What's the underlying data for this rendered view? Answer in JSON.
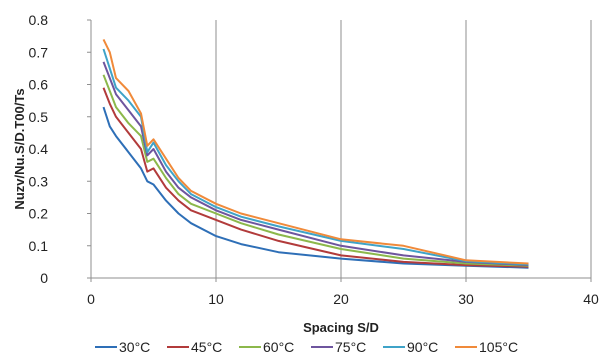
{
  "chart_data": {
    "type": "line",
    "title": "",
    "xlabel": "Spacing S/D",
    "ylabel": "Nuzv/Nu.S/D.T00/Ts",
    "xlim": [
      0,
      40
    ],
    "ylim": [
      0,
      0.8
    ],
    "x_ticks": [
      0,
      10,
      20,
      30,
      40
    ],
    "y_ticks": [
      0,
      0.1,
      0.2,
      0.3,
      0.4,
      0.5,
      0.6,
      0.7,
      0.8
    ],
    "x_tick_labels": [
      "0",
      "10",
      "20",
      "30",
      "40"
    ],
    "y_tick_labels": [
      "0",
      "0.1",
      "0.2",
      "0.3",
      "0.4",
      "0.5",
      "0.6",
      "0.7",
      "0.8"
    ],
    "grid": "vertical",
    "legend_position": "bottom",
    "series": [
      {
        "name": "30°C",
        "color": "#2E6FB7",
        "x": [
          1,
          1.5,
          2,
          3,
          4,
          4.5,
          5,
          6,
          7,
          8,
          10,
          12,
          15,
          20,
          25,
          30,
          35
        ],
        "y": [
          0.53,
          0.47,
          0.44,
          0.39,
          0.34,
          0.3,
          0.29,
          0.24,
          0.2,
          0.17,
          0.13,
          0.105,
          0.08,
          0.06,
          0.045,
          0.038,
          0.032
        ]
      },
      {
        "name": "45°C",
        "color": "#B23B3B",
        "x": [
          1,
          1.5,
          2,
          3,
          4,
          4.5,
          5,
          6,
          7,
          8,
          10,
          12,
          15,
          20,
          25,
          30,
          35
        ],
        "y": [
          0.59,
          0.54,
          0.5,
          0.45,
          0.4,
          0.33,
          0.34,
          0.28,
          0.24,
          0.21,
          0.18,
          0.15,
          0.115,
          0.07,
          0.05,
          0.04,
          0.035
        ]
      },
      {
        "name": "60°C",
        "color": "#8CB84B",
        "x": [
          1,
          1.5,
          2,
          3,
          4,
          4.5,
          5,
          6,
          7,
          8,
          10,
          12,
          15,
          20,
          25,
          30,
          35
        ],
        "y": [
          0.63,
          0.58,
          0.53,
          0.48,
          0.44,
          0.36,
          0.37,
          0.31,
          0.26,
          0.23,
          0.2,
          0.17,
          0.135,
          0.09,
          0.06,
          0.045,
          0.038
        ]
      },
      {
        "name": "75°C",
        "color": "#6E559E",
        "x": [
          1,
          1.5,
          2,
          3,
          4,
          4.5,
          5,
          6,
          7,
          8,
          10,
          12,
          15,
          20,
          25,
          30,
          35
        ],
        "y": [
          0.67,
          0.62,
          0.57,
          0.52,
          0.47,
          0.38,
          0.4,
          0.33,
          0.28,
          0.25,
          0.21,
          0.18,
          0.15,
          0.1,
          0.07,
          0.05,
          0.04
        ]
      },
      {
        "name": "90°C",
        "color": "#3FA3C8",
        "x": [
          1,
          1.5,
          2,
          3,
          4,
          4.5,
          5,
          6,
          7,
          8,
          10,
          12,
          15,
          20,
          25,
          30,
          35
        ],
        "y": [
          0.71,
          0.65,
          0.59,
          0.55,
          0.5,
          0.39,
          0.42,
          0.35,
          0.3,
          0.26,
          0.22,
          0.19,
          0.16,
          0.115,
          0.09,
          0.052,
          0.042
        ]
      },
      {
        "name": "105°C",
        "color": "#F08A3A",
        "x": [
          1,
          1.5,
          2,
          3,
          4,
          4.5,
          5,
          6,
          7,
          8,
          10,
          12,
          15,
          20,
          25,
          30,
          35
        ],
        "y": [
          0.74,
          0.7,
          0.62,
          0.58,
          0.51,
          0.41,
          0.43,
          0.37,
          0.31,
          0.27,
          0.23,
          0.2,
          0.17,
          0.12,
          0.1,
          0.055,
          0.045
        ]
      }
    ]
  }
}
